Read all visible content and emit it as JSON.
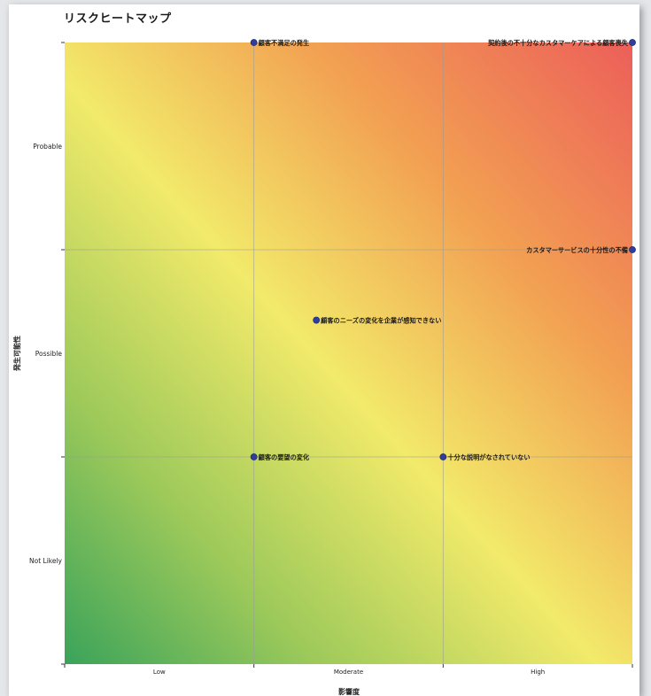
{
  "chart_data": {
    "type": "scatter",
    "title": "リスクヒートマップ",
    "xlabel": "影響度",
    "ylabel": "発生可能性",
    "x_categories": [
      "Low",
      "Moderate",
      "High"
    ],
    "y_categories": [
      "Not Likely",
      "Possible",
      "Probable"
    ],
    "xlim": [
      0,
      3
    ],
    "ylim": [
      0,
      3
    ],
    "grid": true,
    "background": "diagonal heat gradient green (low-left) to yellow to red (high-right)",
    "point_color": "#2e3e9e",
    "points": [
      {
        "x": 1.0,
        "y": 3.0,
        "label": "顧客不満足の発生"
      },
      {
        "x": 3.0,
        "y": 3.0,
        "label": "契約後の不十分なカスタマーケアによる顧客喪失"
      },
      {
        "x": 3.0,
        "y": 2.0,
        "label": "カスタマーサービスの十分性の不備"
      },
      {
        "x": 1.33,
        "y": 1.66,
        "label": "顧客のニーズの変化を企業が感知できない"
      },
      {
        "x": 1.0,
        "y": 1.0,
        "label": "顧客の要望の変化"
      },
      {
        "x": 2.0,
        "y": 1.0,
        "label": "十分な説明がなされていない"
      }
    ]
  },
  "colors": {
    "heat_low": "#3aa35a",
    "heat_mid": "#f2ea6a",
    "heat_orange": "#f2a052",
    "heat_high": "#ec5f5a",
    "grid": "#9a9a9a",
    "axis": "#333333"
  }
}
